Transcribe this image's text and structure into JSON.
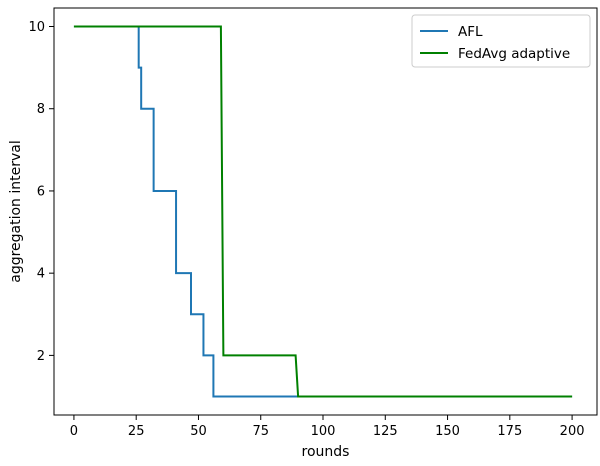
{
  "chart_data": {
    "type": "line",
    "title": "",
    "xlabel": "rounds",
    "ylabel": "aggregation interval",
    "xlim": [
      -8,
      210
    ],
    "ylim": [
      0.55,
      10.45
    ],
    "xticks": [
      0,
      25,
      50,
      75,
      100,
      125,
      150,
      175,
      200
    ],
    "yticks": [
      2,
      4,
      6,
      8,
      10
    ],
    "grid": false,
    "legend_position": "top-right",
    "series": [
      {
        "name": "AFL",
        "color": "#1f77b4",
        "step": true,
        "x": [
          0,
          21,
          21,
          26,
          26,
          27,
          27,
          31,
          31,
          32,
          32,
          40,
          40,
          41,
          41,
          46,
          46,
          47,
          47,
          51,
          51,
          52,
          52,
          56,
          56,
          200
        ],
        "y": [
          10,
          10,
          10,
          10,
          9,
          9,
          8,
          8,
          8,
          8,
          6,
          6,
          6,
          6,
          4,
          4,
          4,
          4,
          3,
          3,
          3,
          3,
          2,
          2,
          1,
          1
        ]
      },
      {
        "name": "FedAvg adaptive",
        "color": "#008000",
        "step": true,
        "x": [
          0,
          59,
          60,
          89,
          90,
          200
        ],
        "y": [
          10,
          10,
          2,
          2,
          1,
          1
        ]
      }
    ]
  }
}
